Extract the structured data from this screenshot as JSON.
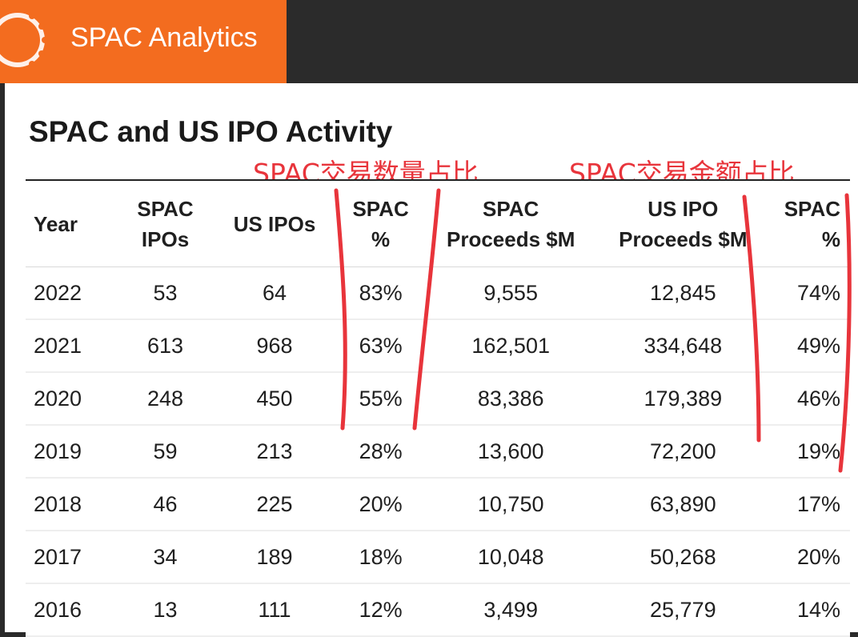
{
  "app": {
    "brand_name": "SPAC Analytics"
  },
  "panel": {
    "title": "SPAC and US IPO Activity"
  },
  "annotations": {
    "count_share": "SPAC交易数量占比",
    "proceeds_share": "SPAC交易金额占比",
    "mark_color": "#e8343b"
  },
  "colors": {
    "brand": "#f36c1f",
    "header_bar": "#2b2b2b"
  },
  "table": {
    "columns": [
      [
        "Year"
      ],
      [
        "SPAC",
        "IPOs"
      ],
      [
        "US IPOs"
      ],
      [
        "SPAC",
        "%"
      ],
      [
        "SPAC",
        "Proceeds $M"
      ],
      [
        "US IPO",
        "Proceeds $M"
      ],
      [
        "SPAC",
        "%"
      ]
    ],
    "rows": [
      [
        "2022",
        "53",
        "64",
        "83%",
        "9,555",
        "12,845",
        "74%"
      ],
      [
        "2021",
        "613",
        "968",
        "63%",
        "162,501",
        "334,648",
        "49%"
      ],
      [
        "2020",
        "248",
        "450",
        "55%",
        "83,386",
        "179,389",
        "46%"
      ],
      [
        "2019",
        "59",
        "213",
        "28%",
        "13,600",
        "72,200",
        "19%"
      ],
      [
        "2018",
        "46",
        "225",
        "20%",
        "10,750",
        "63,890",
        "17%"
      ],
      [
        "2017",
        "34",
        "189",
        "18%",
        "10,048",
        "50,268",
        "20%"
      ],
      [
        "2016",
        "13",
        "111",
        "12%",
        "3,499",
        "25,779",
        "14%"
      ]
    ]
  }
}
